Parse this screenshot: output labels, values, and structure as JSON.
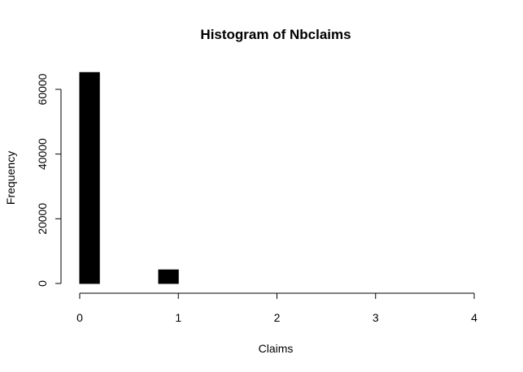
{
  "chart_data": {
    "type": "bar",
    "title": "Histogram of Nbclaims",
    "xlabel": "Claims",
    "ylabel": "Frequency",
    "xlim": [
      0,
      4
    ],
    "ylim": [
      0,
      65000
    ],
    "bar_color": "#000000",
    "bins": [
      {
        "x0": 0.0,
        "x1": 0.2,
        "value": 65200
      },
      {
        "x0": 0.8,
        "x1": 1.0,
        "value": 4200
      }
    ],
    "x_ticks": [
      0,
      1,
      2,
      3,
      4
    ],
    "x_tick_labels": [
      "0",
      "1",
      "2",
      "3",
      "4"
    ],
    "y_ticks": [
      0,
      20000,
      40000,
      60000
    ],
    "y_tick_labels": [
      "0",
      "20000",
      "40000",
      "60000"
    ],
    "grid": false,
    "legend": "none"
  }
}
